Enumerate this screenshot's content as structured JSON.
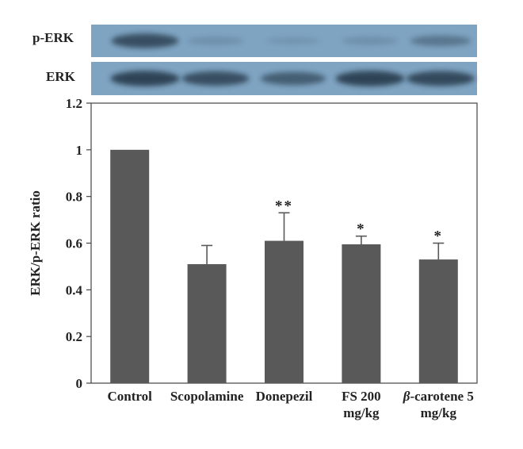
{
  "blot": {
    "rows": [
      {
        "label": "p-ERK",
        "intensities": [
          0.85,
          0.2,
          0.1,
          0.2,
          0.45
        ]
      },
      {
        "label": "ERK",
        "intensities": [
          0.95,
          0.85,
          0.7,
          0.95,
          0.9
        ]
      }
    ],
    "background_color": "#7fa4c2",
    "band_color": "#1f2d3d"
  },
  "chart_data": {
    "type": "bar",
    "categories": [
      [
        "Control"
      ],
      [
        "Scopolamine"
      ],
      [
        "Donepezil"
      ],
      [
        "FS 200",
        "mg/kg"
      ],
      [
        "β-carotene 5",
        "mg/kg"
      ]
    ],
    "values": [
      1.0,
      0.51,
      0.61,
      0.595,
      0.53
    ],
    "errors": [
      0,
      0.08,
      0.12,
      0.035,
      0.07
    ],
    "significance": [
      "",
      "",
      "**",
      "*",
      "*"
    ],
    "ylabel": "ERK/p-ERK ratio",
    "ylim": [
      0,
      1.2
    ],
    "yticks": [
      "0",
      "0.2",
      "0.4",
      "0.6",
      "0.8",
      "1",
      "1.2"
    ],
    "bar_color": "#595959",
    "grid": false
  }
}
